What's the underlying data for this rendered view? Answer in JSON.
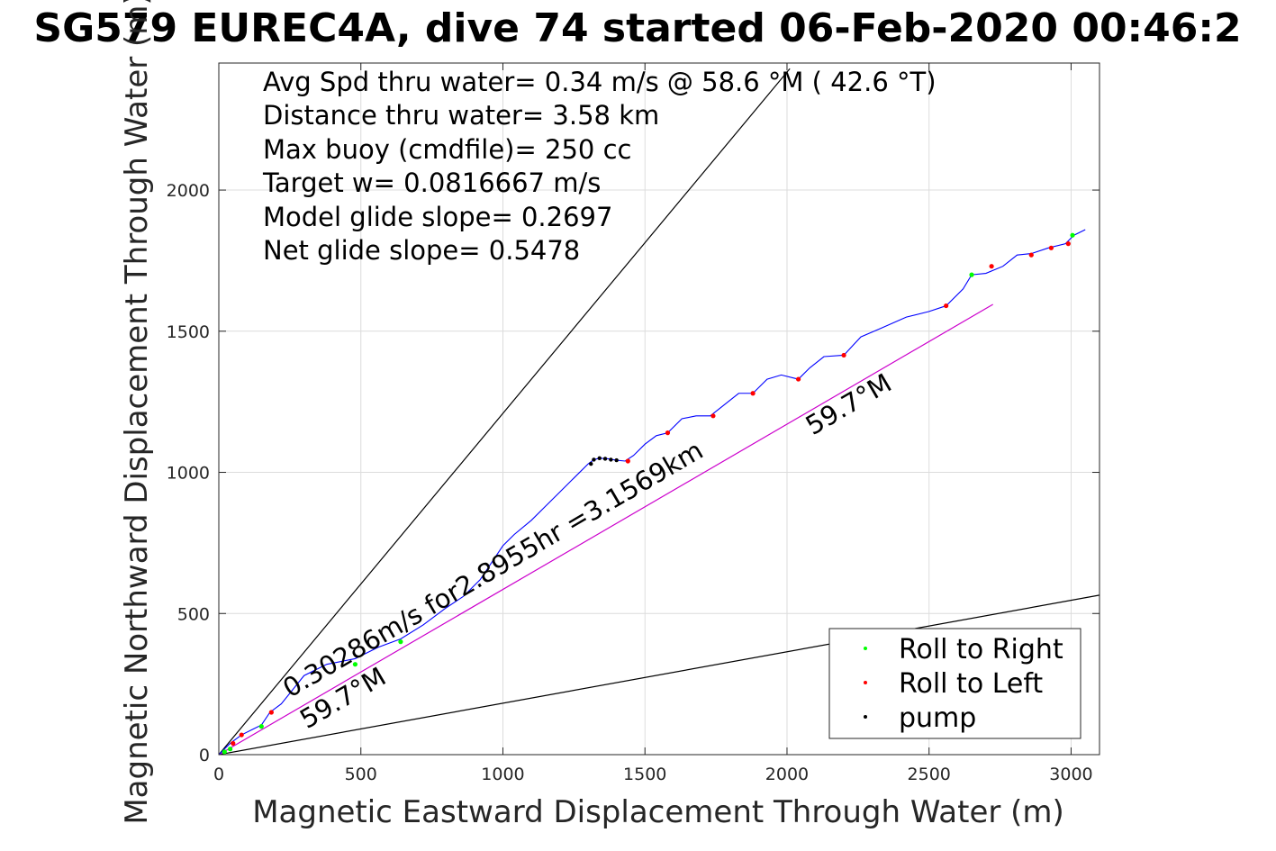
{
  "chart_data": {
    "type": "line",
    "title": "SG579 EUREC4A, dive 74 started 06-Feb-2020 00:46:2",
    "xlabel": "Magnetic Eastward Displacement Through Water (m)",
    "ylabel": "Magnetic Northward Displacement Through Water (m)",
    "xlim": [
      0,
      3100
    ],
    "ylim": [
      0,
      2450
    ],
    "xticks": [
      0,
      500,
      1000,
      1500,
      2000,
      2500,
      3000
    ],
    "yticks": [
      0,
      500,
      1000,
      1500,
      2000
    ],
    "grid": true,
    "legend_position": "bottom-right",
    "info_lines": [
      "Avg Spd thru water=  0.34 m/s @  58.6 °M ( 42.6 °T)",
      "Distance thru water=  3.58 km",
      "Max buoy (cmdfile)= 250 cc",
      "Target w= 0.0816667 m/s",
      "Model glide slope= 0.2697",
      "Net glide slope= 0.5478"
    ],
    "annotations": [
      {
        "text": "0.30286m/s for2.8955hr =3.1569km",
        "x": 250,
        "y": 200,
        "angle_deg": 30.3
      },
      {
        "text": "59.7°M",
        "x": 310,
        "y": 90,
        "angle_deg": 30.3
      },
      {
        "text": "59.7°M",
        "x": 2090,
        "y": 1130,
        "angle_deg": 30.3
      }
    ],
    "reference_lines": [
      {
        "name": "upper-envelope",
        "color": "#000000",
        "x": [
          0,
          2010
        ],
        "y": [
          0,
          2430
        ]
      },
      {
        "name": "lower-envelope",
        "color": "#000000",
        "x": [
          0,
          3100
        ],
        "y": [
          0,
          565
        ]
      },
      {
        "name": "net-track",
        "color": "#cc00cc",
        "x": [
          0,
          2725
        ],
        "y": [
          0,
          1595
        ]
      }
    ],
    "series": [
      {
        "name": "track",
        "color": "#0000ff",
        "x": [
          0,
          40,
          80,
          120,
          150,
          180,
          220,
          300,
          380,
          480,
          560,
          640,
          720,
          800,
          860,
          920,
          960,
          1000,
          1040,
          1100,
          1150,
          1200,
          1250,
          1300,
          1320,
          1340,
          1370,
          1400,
          1430,
          1460,
          1500,
          1540,
          1580,
          1630,
          1680,
          1730,
          1780,
          1830,
          1880,
          1930,
          1980,
          2040,
          2080,
          2130,
          2200,
          2260,
          2330,
          2420,
          2500,
          2560,
          2620,
          2650,
          2700,
          2760,
          2810,
          2860,
          2920,
          2980,
          3010,
          3050
        ],
        "y": [
          0,
          40,
          70,
          90,
          105,
          150,
          180,
          280,
          320,
          340,
          380,
          410,
          460,
          520,
          560,
          620,
          680,
          740,
          780,
          830,
          880,
          930,
          980,
          1030,
          1045,
          1050,
          1048,
          1043,
          1040,
          1060,
          1100,
          1130,
          1140,
          1190,
          1200,
          1200,
          1240,
          1280,
          1280,
          1330,
          1345,
          1330,
          1370,
          1410,
          1415,
          1480,
          1510,
          1550,
          1570,
          1590,
          1650,
          1700,
          1705,
          1730,
          1770,
          1775,
          1795,
          1810,
          1840,
          1860
        ]
      },
      {
        "name": "Roll to Right",
        "color": "#00ff00",
        "x": [
          20,
          40,
          150,
          480,
          640,
          2650,
          3005
        ],
        "y": [
          10,
          20,
          100,
          320,
          400,
          1700,
          1840
        ]
      },
      {
        "name": "Roll to Left",
        "color": "#ff0000",
        "x": [
          50,
          80,
          185,
          1440,
          1580,
          1740,
          1880,
          2040,
          2200,
          2560,
          2720,
          2860,
          2930,
          2990
        ],
        "y": [
          40,
          70,
          150,
          1040,
          1140,
          1200,
          1280,
          1330,
          1415,
          1590,
          1730,
          1770,
          1795,
          1810
        ]
      },
      {
        "name": "pump",
        "color": "#000000",
        "x": [
          1310,
          1320,
          1340,
          1360,
          1380,
          1400
        ],
        "y": [
          1030,
          1045,
          1050,
          1048,
          1045,
          1043
        ]
      }
    ],
    "legend": [
      {
        "label": "Roll to Right",
        "color": "#00ff00"
      },
      {
        "label": "Roll to Left",
        "color": "#ff0000"
      },
      {
        "label": "pump",
        "color": "#000000"
      }
    ]
  }
}
